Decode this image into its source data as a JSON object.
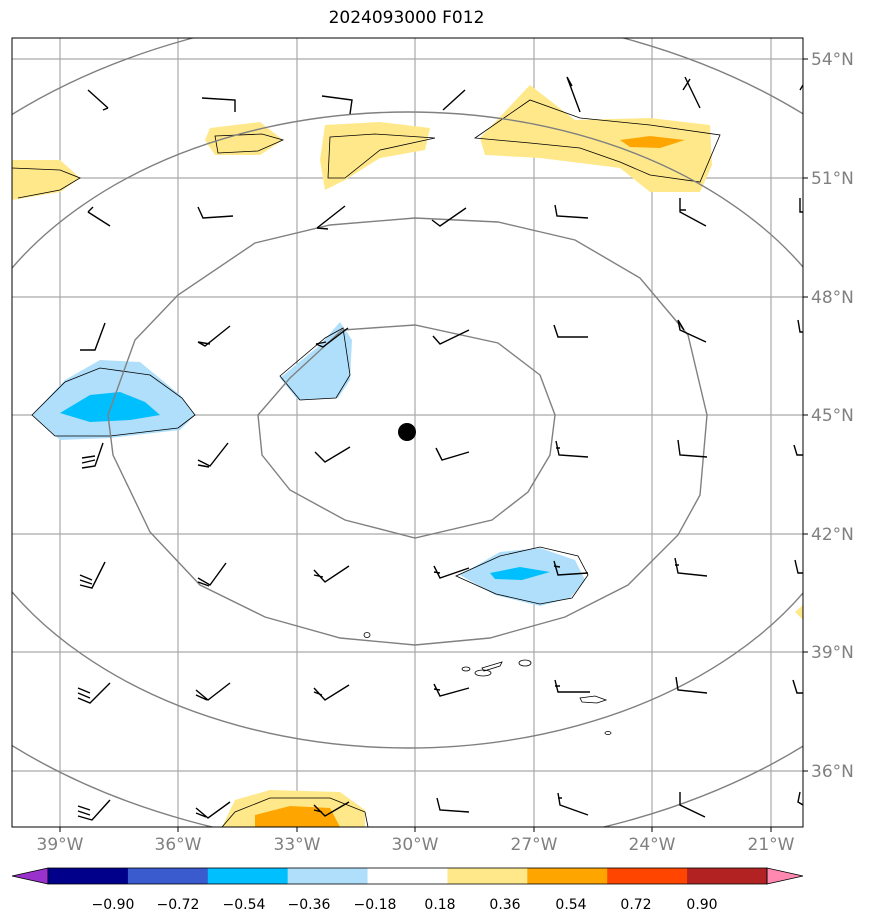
{
  "title": "2024093000 F012",
  "lat_labels": [
    "54°N",
    "51°N",
    "48°N",
    "45°N",
    "42°N",
    "39°N",
    "36°N"
  ],
  "lon_labels": [
    "39°W",
    "36°W",
    "33°W",
    "30°W",
    "27°W",
    "24°W",
    "21°W"
  ],
  "colorbar": {
    "ticks": [
      "−0.90",
      "−0.72",
      "−0.54",
      "−0.36",
      "−0.18",
      "0.18",
      "0.36",
      "0.54",
      "0.72",
      "0.90"
    ],
    "colors": [
      "#9932cc",
      "#00008b",
      "#3a5bcd",
      "#00bfff",
      "#afdffa",
      "#ffffff",
      "#ffe88a",
      "#ffa500",
      "#ff4500",
      "#b22222",
      "#ff88b0"
    ]
  },
  "map": {
    "center_marker": "storm-center",
    "contour_color": "#808080",
    "grid_color": "#a9a9a9"
  }
}
